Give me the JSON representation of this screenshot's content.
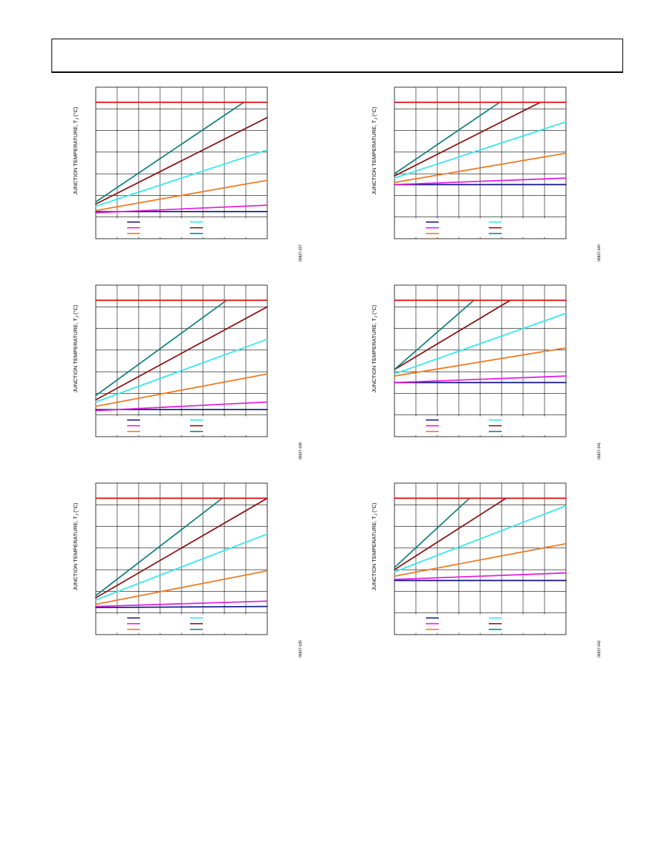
{
  "page": {
    "header": ""
  },
  "colors": {
    "navy": "#1a1a8c",
    "magenta": "#e020e0",
    "orange": "#f07820",
    "cyan": "#30e8f0",
    "maroon": "#8b1010",
    "teal": "#138080",
    "red": "#e01818",
    "grid": "#000000"
  },
  "chart_data": [
    {
      "type": "line",
      "ylabel_main": "JUNCTION TEMPERATURE, T",
      "ylabel_sub": "J",
      "ylabel_unit": " (°C)",
      "fig_id": "06827-027",
      "grid": true,
      "legend": "bottom-left",
      "xlim": [
        0,
        8
      ],
      "ylim": [
        -1,
        6
      ],
      "series": [
        {
          "color": "navy",
          "x": [
            0,
            8
          ],
          "y": [
            0.25,
            0.25
          ]
        },
        {
          "color": "magenta",
          "x": [
            0,
            8
          ],
          "y": [
            0.2,
            0.55
          ]
        },
        {
          "color": "orange",
          "x": [
            0,
            8
          ],
          "y": [
            0.3,
            1.7
          ]
        },
        {
          "color": "cyan",
          "x": [
            0,
            8
          ],
          "y": [
            0.5,
            3.1
          ]
        },
        {
          "color": "maroon",
          "x": [
            0,
            8
          ],
          "y": [
            0.6,
            4.6
          ]
        },
        {
          "color": "teal",
          "x": [
            0,
            6.9
          ],
          "y": [
            0.7,
            5.3
          ]
        },
        {
          "color": "red",
          "x": [
            0,
            8
          ],
          "y": [
            5.3,
            5.3
          ]
        }
      ]
    },
    {
      "type": "line",
      "ylabel_main": "JUNCTION TEMPERATURE, T",
      "ylabel_sub": "J",
      "ylabel_unit": " (°C)",
      "fig_id": "06827-040",
      "grid": true,
      "legend": "bottom-left",
      "xlim": [
        0,
        8
      ],
      "ylim": [
        -1,
        6
      ],
      "series": [
        {
          "color": "navy",
          "x": [
            0,
            8
          ],
          "y": [
            1.5,
            1.5
          ]
        },
        {
          "color": "magenta",
          "x": [
            0,
            8
          ],
          "y": [
            1.5,
            1.8
          ]
        },
        {
          "color": "orange",
          "x": [
            0,
            8
          ],
          "y": [
            1.6,
            2.95
          ]
        },
        {
          "color": "cyan",
          "x": [
            0,
            8
          ],
          "y": [
            1.8,
            4.4
          ]
        },
        {
          "color": "maroon",
          "x": [
            0,
            6.8
          ],
          "y": [
            1.9,
            5.3
          ]
        },
        {
          "color": "teal",
          "x": [
            0,
            4.9
          ],
          "y": [
            2.0,
            5.3
          ]
        },
        {
          "color": "red",
          "x": [
            0,
            8
          ],
          "y": [
            5.3,
            5.3
          ]
        }
      ]
    },
    {
      "type": "line",
      "ylabel_main": "JUNCTION TEMPERATURE, T",
      "ylabel_sub": "J",
      "ylabel_unit": " (°C)",
      "fig_id": "06827-038",
      "grid": true,
      "legend": "bottom-left",
      "xlim": [
        0,
        8
      ],
      "ylim": [
        -1,
        6
      ],
      "series": [
        {
          "color": "navy",
          "x": [
            0,
            8
          ],
          "y": [
            0.25,
            0.25
          ]
        },
        {
          "color": "magenta",
          "x": [
            0,
            8
          ],
          "y": [
            0.2,
            0.6
          ]
        },
        {
          "color": "orange",
          "x": [
            0,
            8
          ],
          "y": [
            0.4,
            1.9
          ]
        },
        {
          "color": "cyan",
          "x": [
            0,
            8
          ],
          "y": [
            0.6,
            3.5
          ]
        },
        {
          "color": "maroon",
          "x": [
            0,
            8
          ],
          "y": [
            0.7,
            5.0
          ]
        },
        {
          "color": "teal",
          "x": [
            0,
            6.1
          ],
          "y": [
            0.9,
            5.3
          ]
        },
        {
          "color": "red",
          "x": [
            0,
            8
          ],
          "y": [
            5.3,
            5.3
          ]
        }
      ]
    },
    {
      "type": "line",
      "ylabel_main": "JUNCTION TEMPERATURE, T",
      "ylabel_sub": "J",
      "ylabel_unit": " (°C)",
      "fig_id": "06827-041",
      "grid": true,
      "legend": "bottom-left",
      "xlim": [
        0,
        8
      ],
      "ylim": [
        -1,
        6
      ],
      "series": [
        {
          "color": "navy",
          "x": [
            0,
            8
          ],
          "y": [
            1.5,
            1.5
          ]
        },
        {
          "color": "magenta",
          "x": [
            0,
            8
          ],
          "y": [
            1.5,
            1.8
          ]
        },
        {
          "color": "orange",
          "x": [
            0,
            8
          ],
          "y": [
            1.8,
            3.1
          ]
        },
        {
          "color": "cyan",
          "x": [
            0,
            8
          ],
          "y": [
            1.9,
            4.7
          ]
        },
        {
          "color": "maroon",
          "x": [
            0,
            5.4
          ],
          "y": [
            2.1,
            5.3
          ]
        },
        {
          "color": "teal",
          "x": [
            0,
            3.7
          ],
          "y": [
            2.1,
            5.3
          ]
        },
        {
          "color": "red",
          "x": [
            0,
            8
          ],
          "y": [
            5.3,
            5.3
          ]
        }
      ]
    },
    {
      "type": "line",
      "ylabel_main": "JUNCTION TEMPERATURE, T",
      "ylabel_sub": "J",
      "ylabel_unit": " (°C)",
      "fig_id": "06827-039",
      "grid": true,
      "legend": "bottom-left",
      "xlim": [
        0,
        8
      ],
      "ylim": [
        -1,
        6
      ],
      "series": [
        {
          "color": "navy",
          "x": [
            0,
            8
          ],
          "y": [
            0.25,
            0.3
          ]
        },
        {
          "color": "magenta",
          "x": [
            0,
            8
          ],
          "y": [
            0.3,
            0.55
          ]
        },
        {
          "color": "orange",
          "x": [
            0,
            8
          ],
          "y": [
            0.4,
            1.95
          ]
        },
        {
          "color": "cyan",
          "x": [
            0,
            8
          ],
          "y": [
            0.6,
            3.65
          ]
        },
        {
          "color": "maroon",
          "x": [
            0,
            8
          ],
          "y": [
            0.7,
            5.3
          ]
        },
        {
          "color": "teal",
          "x": [
            0,
            5.9
          ],
          "y": [
            0.8,
            5.3
          ]
        },
        {
          "color": "red",
          "x": [
            0,
            8
          ],
          "y": [
            5.3,
            5.3
          ]
        }
      ]
    },
    {
      "type": "line",
      "ylabel_main": "JUNCTION TEMPERATURE, T",
      "ylabel_sub": "J",
      "ylabel_unit": " (°C)",
      "fig_id": "06827-042",
      "grid": true,
      "legend": "bottom-left",
      "xlim": [
        0,
        8
      ],
      "ylim": [
        -1,
        6
      ],
      "series": [
        {
          "color": "navy",
          "x": [
            0,
            8
          ],
          "y": [
            1.5,
            1.5
          ]
        },
        {
          "color": "magenta",
          "x": [
            0,
            8
          ],
          "y": [
            1.55,
            1.85
          ]
        },
        {
          "color": "orange",
          "x": [
            0,
            8
          ],
          "y": [
            1.7,
            3.2
          ]
        },
        {
          "color": "cyan",
          "x": [
            0,
            8
          ],
          "y": [
            1.9,
            4.95
          ]
        },
        {
          "color": "maroon",
          "x": [
            0,
            5.2
          ],
          "y": [
            2.0,
            5.3
          ]
        },
        {
          "color": "teal",
          "x": [
            0,
            3.5
          ],
          "y": [
            2.1,
            5.3
          ]
        },
        {
          "color": "red",
          "x": [
            0,
            8
          ],
          "y": [
            5.3,
            5.3
          ]
        }
      ]
    }
  ]
}
